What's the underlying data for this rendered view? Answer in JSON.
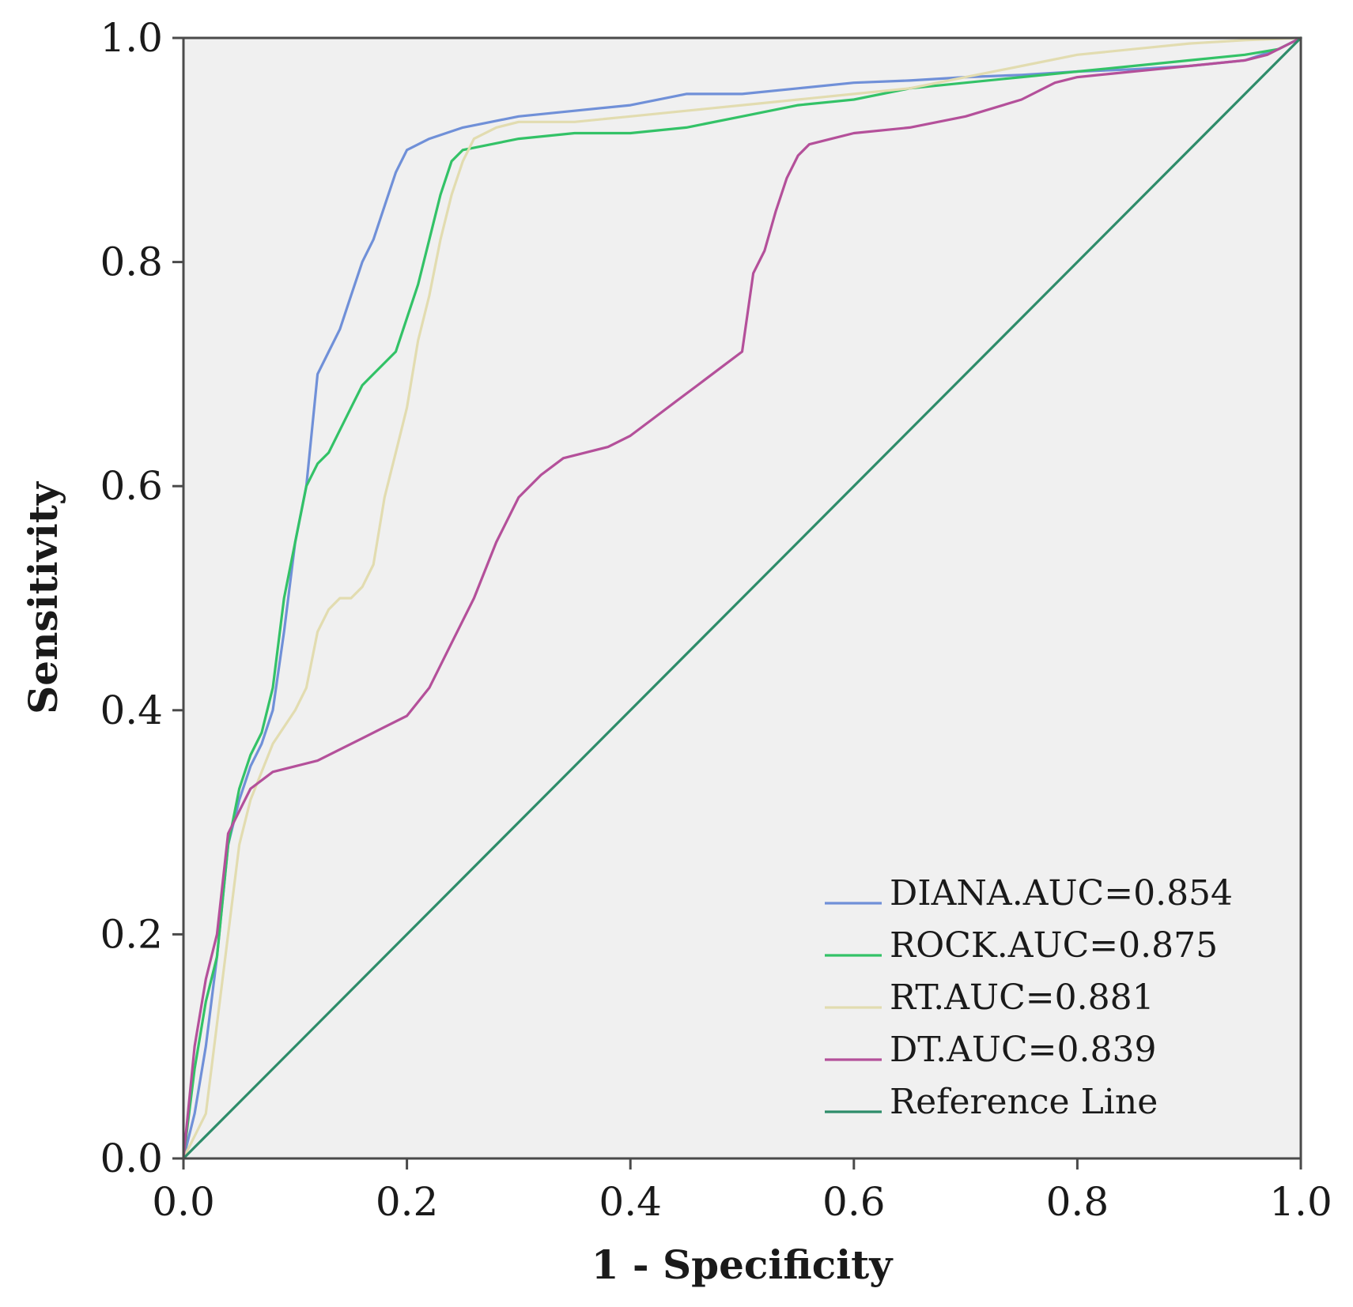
{
  "chart_data": {
    "type": "line",
    "xlabel": "1 - Specificity",
    "ylabel": "Sensitivity",
    "xlim": [
      0,
      1
    ],
    "ylim": [
      0,
      1
    ],
    "xticks": [
      "0.0",
      "0.2",
      "0.4",
      "0.6",
      "0.8",
      "1.0"
    ],
    "yticks": [
      "0.0",
      "0.2",
      "0.4",
      "0.6",
      "0.8",
      "1.0"
    ],
    "xtick_values": [
      0,
      0.2,
      0.4,
      0.6,
      0.8,
      1.0
    ],
    "ytick_values": [
      0,
      0.2,
      0.4,
      0.6,
      0.8,
      1.0
    ],
    "grid": false,
    "background": "#f0f0f0",
    "legend_position": "bottom-right",
    "series": [
      {
        "name": "DIANA.AUC=0.854",
        "color": "#7090d8",
        "x": [
          0,
          0.01,
          0.02,
          0.03,
          0.04,
          0.05,
          0.06,
          0.07,
          0.08,
          0.09,
          0.1,
          0.11,
          0.12,
          0.13,
          0.14,
          0.15,
          0.16,
          0.17,
          0.18,
          0.19,
          0.2,
          0.22,
          0.25,
          0.3,
          0.35,
          0.4,
          0.45,
          0.5,
          0.55,
          0.6,
          0.65,
          0.7,
          0.75,
          0.8,
          0.85,
          0.9,
          0.95,
          0.98,
          1.0
        ],
        "y": [
          0,
          0.04,
          0.1,
          0.18,
          0.28,
          0.32,
          0.35,
          0.37,
          0.4,
          0.47,
          0.55,
          0.6,
          0.7,
          0.72,
          0.74,
          0.77,
          0.8,
          0.82,
          0.85,
          0.88,
          0.9,
          0.91,
          0.92,
          0.93,
          0.935,
          0.94,
          0.95,
          0.95,
          0.955,
          0.96,
          0.962,
          0.965,
          0.967,
          0.97,
          0.972,
          0.975,
          0.98,
          0.99,
          1.0
        ]
      },
      {
        "name": "ROCK.AUC=0.875",
        "color": "#33c267",
        "x": [
          0,
          0.01,
          0.02,
          0.03,
          0.04,
          0.05,
          0.06,
          0.07,
          0.08,
          0.09,
          0.1,
          0.11,
          0.12,
          0.13,
          0.14,
          0.15,
          0.16,
          0.17,
          0.18,
          0.19,
          0.2,
          0.21,
          0.22,
          0.23,
          0.24,
          0.25,
          0.3,
          0.35,
          0.4,
          0.45,
          0.5,
          0.55,
          0.6,
          0.65,
          0.7,
          0.75,
          0.8,
          0.85,
          0.9,
          0.95,
          0.98,
          1.0
        ],
        "y": [
          0,
          0.08,
          0.14,
          0.18,
          0.28,
          0.33,
          0.36,
          0.38,
          0.42,
          0.5,
          0.55,
          0.6,
          0.62,
          0.63,
          0.65,
          0.67,
          0.69,
          0.7,
          0.71,
          0.72,
          0.75,
          0.78,
          0.82,
          0.86,
          0.89,
          0.9,
          0.91,
          0.915,
          0.915,
          0.92,
          0.93,
          0.94,
          0.945,
          0.955,
          0.96,
          0.965,
          0.97,
          0.975,
          0.98,
          0.985,
          0.99,
          1.0
        ]
      },
      {
        "name": "RT.AUC=0.881",
        "color": "#e2dcb0",
        "x": [
          0,
          0.02,
          0.03,
          0.04,
          0.05,
          0.06,
          0.08,
          0.1,
          0.11,
          0.12,
          0.13,
          0.14,
          0.15,
          0.16,
          0.17,
          0.18,
          0.19,
          0.2,
          0.21,
          0.22,
          0.23,
          0.24,
          0.25,
          0.26,
          0.28,
          0.3,
          0.35,
          0.4,
          0.45,
          0.5,
          0.55,
          0.6,
          0.65,
          0.7,
          0.75,
          0.8,
          0.85,
          0.9,
          0.95,
          1.0
        ],
        "y": [
          0,
          0.04,
          0.12,
          0.2,
          0.28,
          0.32,
          0.37,
          0.4,
          0.42,
          0.47,
          0.49,
          0.5,
          0.5,
          0.51,
          0.53,
          0.59,
          0.63,
          0.67,
          0.73,
          0.77,
          0.82,
          0.86,
          0.89,
          0.91,
          0.92,
          0.925,
          0.925,
          0.93,
          0.935,
          0.94,
          0.945,
          0.95,
          0.955,
          0.965,
          0.975,
          0.985,
          0.99,
          0.995,
          0.998,
          1.0
        ]
      },
      {
        "name": "DT.AUC=0.839",
        "color": "#b4509a",
        "x": [
          0,
          0.01,
          0.02,
          0.03,
          0.04,
          0.05,
          0.06,
          0.08,
          0.1,
          0.12,
          0.14,
          0.16,
          0.18,
          0.2,
          0.22,
          0.24,
          0.26,
          0.28,
          0.3,
          0.32,
          0.34,
          0.36,
          0.38,
          0.4,
          0.42,
          0.44,
          0.46,
          0.48,
          0.5,
          0.51,
          0.52,
          0.53,
          0.54,
          0.55,
          0.56,
          0.58,
          0.6,
          0.65,
          0.7,
          0.75,
          0.78,
          0.8,
          0.85,
          0.9,
          0.95,
          0.97,
          1.0
        ],
        "y": [
          0,
          0.1,
          0.16,
          0.2,
          0.29,
          0.31,
          0.33,
          0.345,
          0.35,
          0.355,
          0.365,
          0.375,
          0.385,
          0.395,
          0.42,
          0.46,
          0.5,
          0.55,
          0.59,
          0.61,
          0.625,
          0.63,
          0.635,
          0.645,
          0.66,
          0.675,
          0.69,
          0.705,
          0.72,
          0.79,
          0.81,
          0.845,
          0.875,
          0.895,
          0.905,
          0.91,
          0.915,
          0.92,
          0.93,
          0.945,
          0.96,
          0.965,
          0.97,
          0.975,
          0.98,
          0.985,
          1.0
        ]
      },
      {
        "name": "Reference Line",
        "color": "#2e8c6a",
        "x": [
          0,
          1
        ],
        "y": [
          0,
          1
        ]
      }
    ]
  }
}
